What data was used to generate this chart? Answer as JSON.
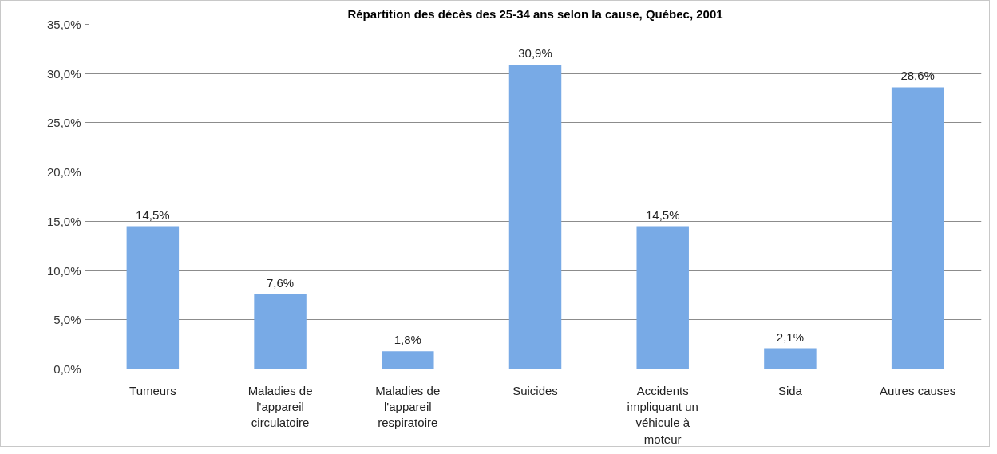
{
  "chart_data": {
    "type": "bar",
    "title": "Répartition des décès des 25-34 ans selon la cause, Québec, 2001",
    "categories": [
      "Tumeurs",
      "Maladies de l'appareil circulatoire",
      "Maladies de l'appareil respiratoire",
      "Suicides",
      "Accidents impliquant un véhicule à moteur",
      "Sida",
      "Autres causes"
    ],
    "values": [
      14.5,
      7.6,
      1.8,
      30.9,
      14.5,
      2.1,
      28.6
    ],
    "value_labels": [
      "14,5%",
      "7,6%",
      "1,8%",
      "30,9%",
      "14,5%",
      "2,1%",
      "28,6%"
    ],
    "color": "#78aae6",
    "ylim": [
      0,
      35
    ],
    "yticks": [
      {
        "value": 0,
        "label": "0,0%"
      },
      {
        "value": 5,
        "label": "5,0%"
      },
      {
        "value": 10,
        "label": "10,0%"
      },
      {
        "value": 15,
        "label": "15,0%"
      },
      {
        "value": 20,
        "label": "20,0%"
      },
      {
        "value": 25,
        "label": "25,0%"
      },
      {
        "value": 30,
        "label": "30,0%"
      },
      {
        "value": 35,
        "label": "35,0%"
      }
    ],
    "grid": "y"
  }
}
